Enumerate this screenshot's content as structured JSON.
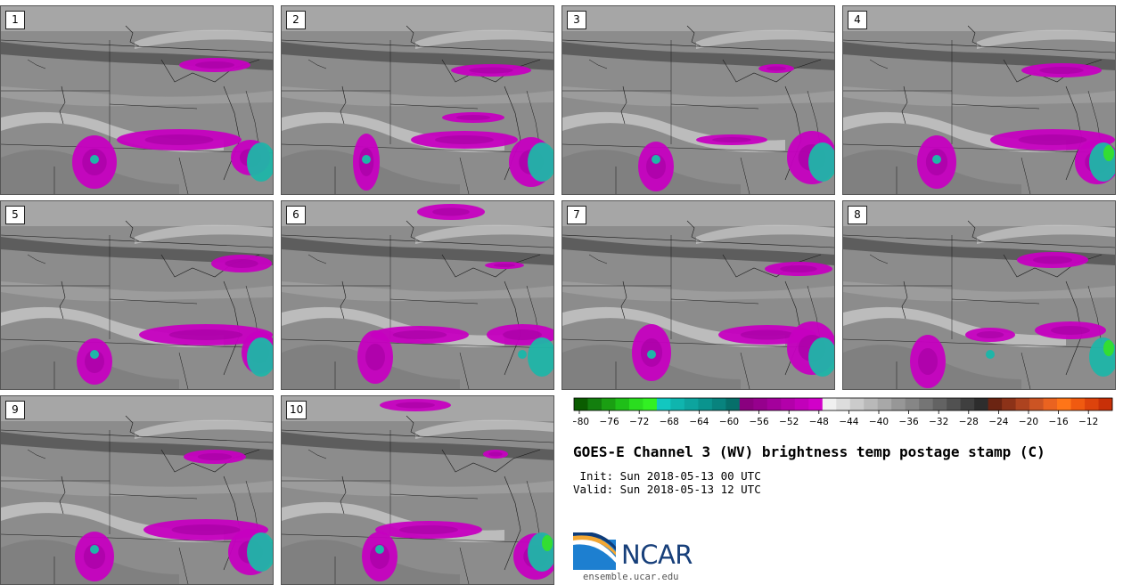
{
  "panels": [
    {
      "label": "1"
    },
    {
      "label": "2"
    },
    {
      "label": "3"
    },
    {
      "label": "4"
    },
    {
      "label": "5"
    },
    {
      "label": "6"
    },
    {
      "label": "7"
    },
    {
      "label": "8"
    },
    {
      "label": "9"
    },
    {
      "label": "10"
    }
  ],
  "colorbar": {
    "ticks": [
      "−80",
      "−76",
      "−72",
      "−68",
      "−64",
      "−60",
      "−56",
      "−52",
      "−48",
      "−44",
      "−40",
      "−36",
      "−32",
      "−28",
      "−24",
      "−20",
      "−16",
      "−12"
    ],
    "colors": [
      "#0a5c00",
      "#137f0e",
      "#1a9f12",
      "#1fbf18",
      "#2add1f",
      "#32f023",
      "#12c7c0",
      "#0fb5ae",
      "#0da49e",
      "#0a948e",
      "#08837e",
      "#066f6a",
      "#8a007f",
      "#96008d",
      "#a4009c",
      "#b300aa",
      "#c200ba",
      "#d100c9",
      "#f0f0f0",
      "#dddddd",
      "#cbcbcb",
      "#b9b9b9",
      "#a8a8a8",
      "#979797",
      "#868686",
      "#757575",
      "#636363",
      "#515151",
      "#3f3f3f",
      "#2d2d2d",
      "#6b2412",
      "#8c3218",
      "#ad431f",
      "#cc5423",
      "#ea6320",
      "#ff7518",
      "#f05a10",
      "#dd430c",
      "#c83008"
    ]
  },
  "title": "GOES-E Channel 3 (WV) brightness temp postage stamp (C)",
  "init_line": " Init: Sun 2018-05-13 00 UTC",
  "valid_line": "Valid: Sun 2018-05-13 12 UTC",
  "logo": {
    "name": "NCAR",
    "url": "ensemble.ucar.edu"
  },
  "legend_colors": {
    "background_gray": "#8c8c8c",
    "dark_band": "#555555",
    "light_band": "#c8c8c8",
    "magenta": "#c600c0",
    "teal": "#1fb5a8",
    "green": "#33dd33"
  }
}
